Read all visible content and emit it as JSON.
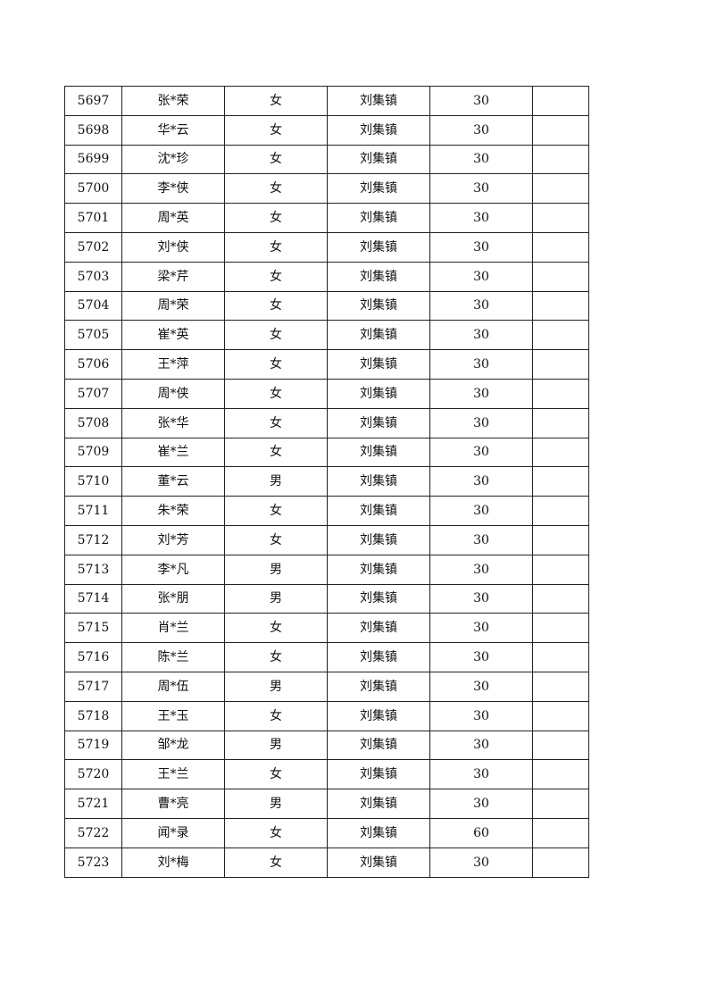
{
  "rows": [
    {
      "id": "5697",
      "name": "张*荣",
      "gender": "女",
      "town": "刘集镇",
      "amount": "30",
      "note": ""
    },
    {
      "id": "5698",
      "name": "华*云",
      "gender": "女",
      "town": "刘集镇",
      "amount": "30",
      "note": ""
    },
    {
      "id": "5699",
      "name": "沈*珍",
      "gender": "女",
      "town": "刘集镇",
      "amount": "30",
      "note": ""
    },
    {
      "id": "5700",
      "name": "李*侠",
      "gender": "女",
      "town": "刘集镇",
      "amount": "30",
      "note": ""
    },
    {
      "id": "5701",
      "name": "周*英",
      "gender": "女",
      "town": "刘集镇",
      "amount": "30",
      "note": ""
    },
    {
      "id": "5702",
      "name": "刘*侠",
      "gender": "女",
      "town": "刘集镇",
      "amount": "30",
      "note": ""
    },
    {
      "id": "5703",
      "name": "梁*芹",
      "gender": "女",
      "town": "刘集镇",
      "amount": "30",
      "note": ""
    },
    {
      "id": "5704",
      "name": "周*荣",
      "gender": "女",
      "town": "刘集镇",
      "amount": "30",
      "note": ""
    },
    {
      "id": "5705",
      "name": "崔*英",
      "gender": "女",
      "town": "刘集镇",
      "amount": "30",
      "note": ""
    },
    {
      "id": "5706",
      "name": "王*萍",
      "gender": "女",
      "town": "刘集镇",
      "amount": "30",
      "note": ""
    },
    {
      "id": "5707",
      "name": "周*侠",
      "gender": "女",
      "town": "刘集镇",
      "amount": "30",
      "note": ""
    },
    {
      "id": "5708",
      "name": "张*华",
      "gender": "女",
      "town": "刘集镇",
      "amount": "30",
      "note": ""
    },
    {
      "id": "5709",
      "name": "崔*兰",
      "gender": "女",
      "town": "刘集镇",
      "amount": "30",
      "note": ""
    },
    {
      "id": "5710",
      "name": "董*云",
      "gender": "男",
      "town": "刘集镇",
      "amount": "30",
      "note": ""
    },
    {
      "id": "5711",
      "name": "朱*荣",
      "gender": "女",
      "town": "刘集镇",
      "amount": "30",
      "note": ""
    },
    {
      "id": "5712",
      "name": "刘*芳",
      "gender": "女",
      "town": "刘集镇",
      "amount": "30",
      "note": ""
    },
    {
      "id": "5713",
      "name": "李*凡",
      "gender": "男",
      "town": "刘集镇",
      "amount": "30",
      "note": ""
    },
    {
      "id": "5714",
      "name": "张*朋",
      "gender": "男",
      "town": "刘集镇",
      "amount": "30",
      "note": ""
    },
    {
      "id": "5715",
      "name": "肖*兰",
      "gender": "女",
      "town": "刘集镇",
      "amount": "30",
      "note": ""
    },
    {
      "id": "5716",
      "name": "陈*兰",
      "gender": "女",
      "town": "刘集镇",
      "amount": "30",
      "note": ""
    },
    {
      "id": "5717",
      "name": "周*伍",
      "gender": "男",
      "town": "刘集镇",
      "amount": "30",
      "note": ""
    },
    {
      "id": "5718",
      "name": "王*玉",
      "gender": "女",
      "town": "刘集镇",
      "amount": "30",
      "note": ""
    },
    {
      "id": "5719",
      "name": "邹*龙",
      "gender": "男",
      "town": "刘集镇",
      "amount": "30",
      "note": ""
    },
    {
      "id": "5720",
      "name": "王*兰",
      "gender": "女",
      "town": "刘集镇",
      "amount": "30",
      "note": ""
    },
    {
      "id": "5721",
      "name": "曹*亮",
      "gender": "男",
      "town": "刘集镇",
      "amount": "30",
      "note": ""
    },
    {
      "id": "5722",
      "name": "闻*录",
      "gender": "女",
      "town": "刘集镇",
      "amount": "60",
      "note": ""
    },
    {
      "id": "5723",
      "name": "刘*梅",
      "gender": "女",
      "town": "刘集镇",
      "amount": "30",
      "note": ""
    }
  ]
}
